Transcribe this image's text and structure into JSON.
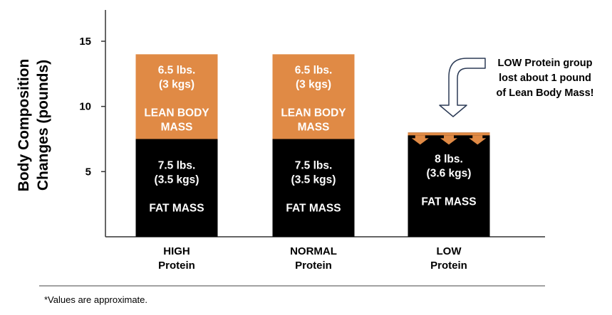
{
  "chart_data": {
    "type": "bar",
    "stacked": true,
    "ylabel": [
      "Body Composition",
      "Changes (pounds)"
    ],
    "ylim": [
      0,
      15
    ],
    "yticks": [
      5,
      10,
      15
    ],
    "grid": false,
    "categories": [
      [
        "HIGH",
        "Protein"
      ],
      [
        "NORMAL",
        "Protein"
      ],
      [
        "LOW",
        "Protein"
      ]
    ],
    "series": [
      {
        "key": "fat",
        "color": "#000000",
        "values": [
          7.5,
          7.5,
          8
        ],
        "labels": [
          [
            "7.5 lbs.",
            "(3.5 kgs)",
            "",
            "FAT MASS"
          ],
          [
            "7.5 lbs.",
            "(3.5 kgs)",
            "",
            "FAT MASS"
          ],
          [
            "8 lbs.",
            "(3.6 kgs)",
            "",
            "FAT MASS"
          ]
        ]
      },
      {
        "key": "lean",
        "color": "#E08A45",
        "values": [
          6.5,
          6.5,
          0
        ],
        "labels": [
          [
            "6.5 lbs.",
            "(3 kgs)",
            "",
            "LEAN BODY",
            "MASS"
          ],
          [
            "6.5 lbs.",
            "(3 kgs)",
            "",
            "LEAN BODY",
            "MASS"
          ],
          []
        ]
      }
    ],
    "annotation": {
      "lines": [
        "LOW Protein group",
        "lost about 1 pound",
        "of Lean Body Mass!"
      ],
      "target_category": 2
    },
    "loss_marker_color": "#E08A45"
  },
  "footnote": "*Values are approximate."
}
